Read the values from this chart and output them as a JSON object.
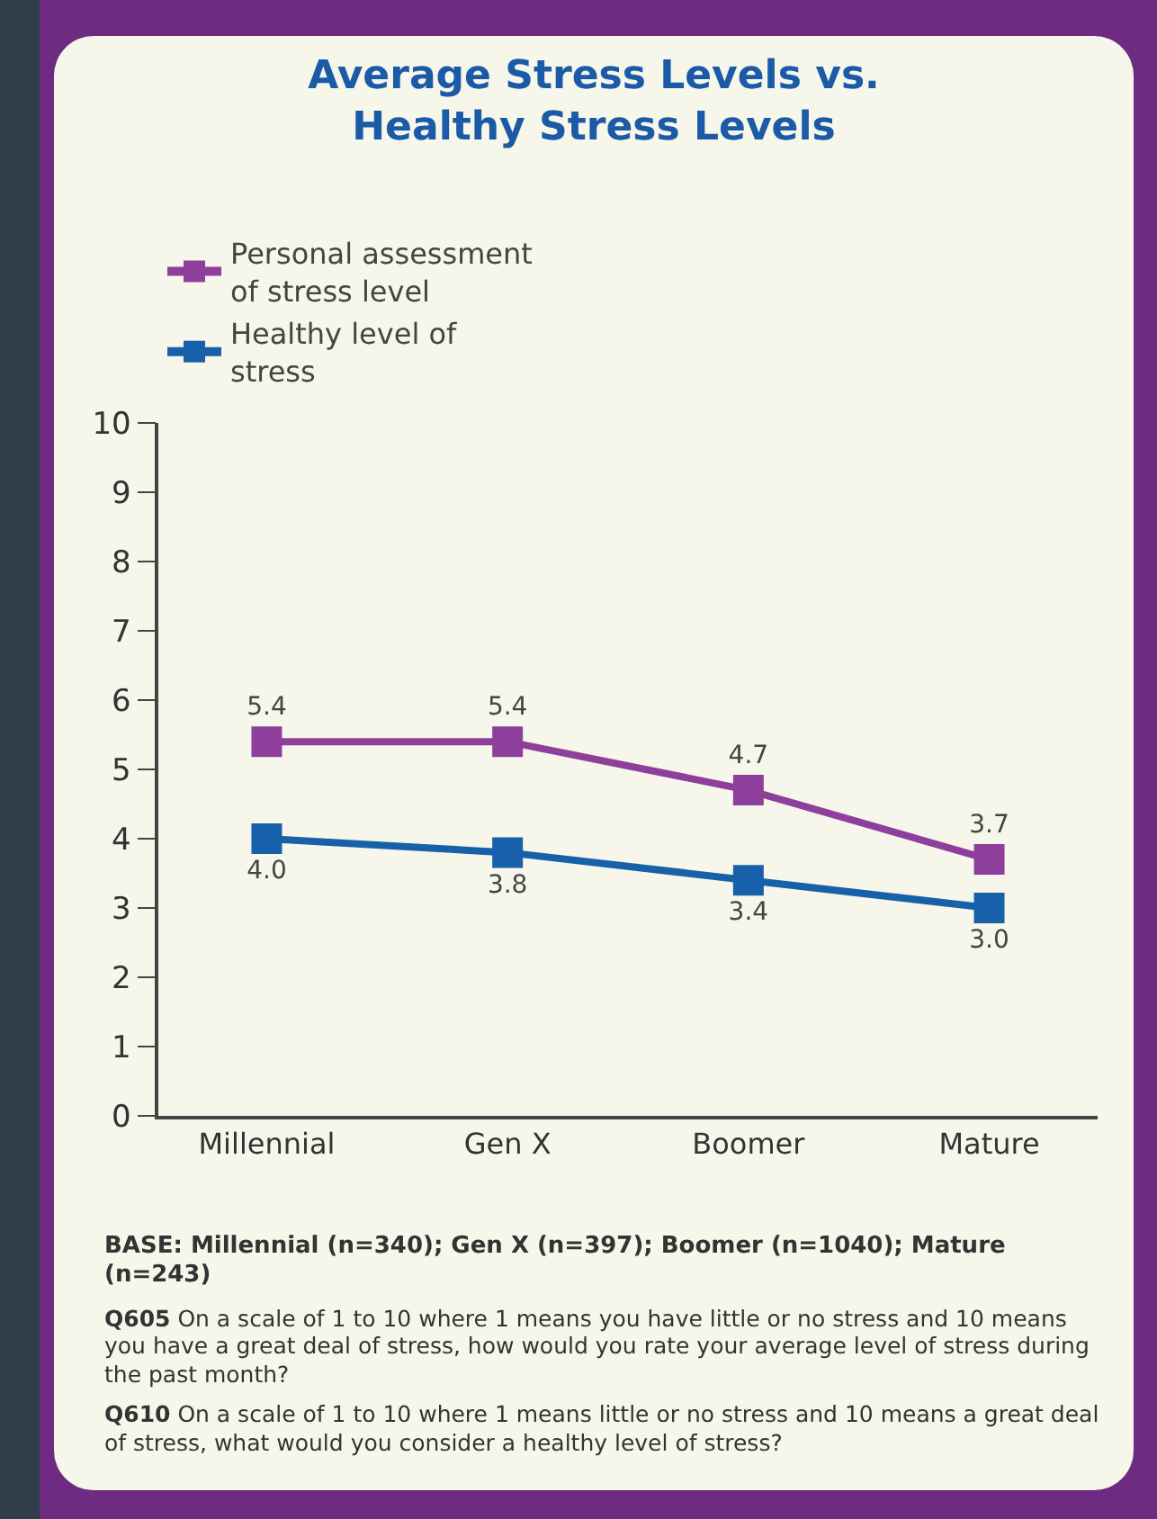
{
  "chart_data": {
    "type": "line",
    "title": "Average Stress Levels vs. Healthy Stress Levels",
    "categories": [
      "Millennial",
      "Gen X",
      "Boomer",
      "Mature"
    ],
    "series": [
      {
        "name": "Personal assessment of stress level",
        "color": "#8e3f9c",
        "values": [
          5.4,
          5.4,
          4.7,
          3.7
        ],
        "value_labels": [
          "5.4",
          "5.4",
          "4.7",
          "3.7"
        ]
      },
      {
        "name": "Healthy level of stress",
        "color": "#1661aa",
        "values": [
          4.0,
          3.8,
          3.4,
          3.0
        ],
        "value_labels": [
          "4.0",
          "3.8",
          "3.4",
          "3.0"
        ]
      }
    ],
    "ylim": [
      0,
      10
    ],
    "yticks": [
      0,
      1,
      2,
      3,
      4,
      5,
      6,
      7,
      8,
      9,
      10
    ],
    "grid": false,
    "legend": "top",
    "marker": "square",
    "line_style": "solid",
    "annotations": [
      "BASE: Millennial (n=340); Gen X (n=397); Boomer (n=1040); Mature (n=243)",
      "Q605 On a scale of 1 to 10 where 1 means you have little or no stress and 10 means you have a great deal of stress, how would you rate your average level of stress during the past month?",
      "Q610 On a scale of 1 to 10 where 1 means little or no stress and 10 means a great deal of stress, what would you consider a healthy level of stress?"
    ]
  }
}
